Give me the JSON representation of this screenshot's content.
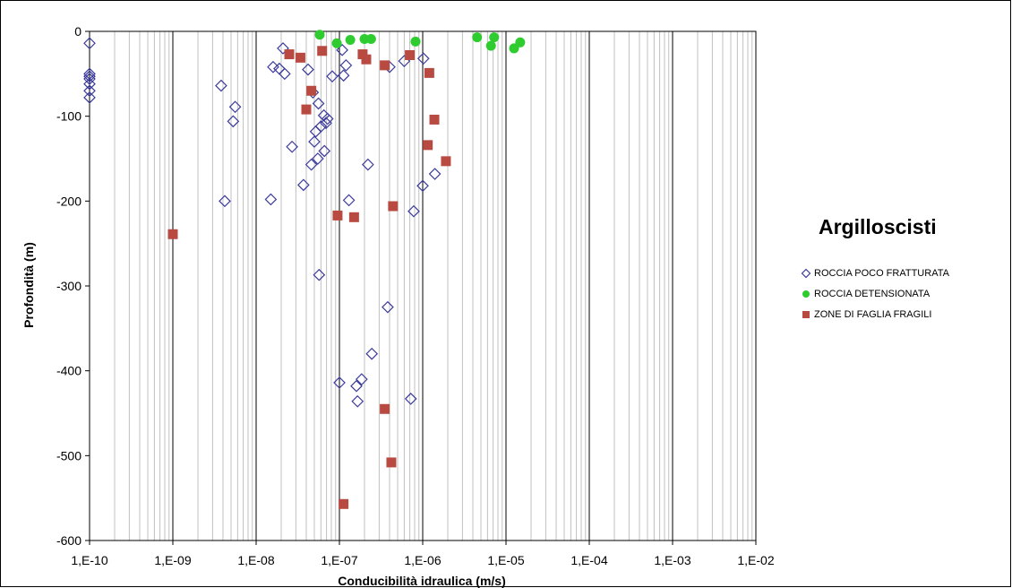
{
  "chart_data": {
    "type": "scatter",
    "title": "Argilloscisti",
    "xlabel": "Conducibilità idraulica (m/s)",
    "ylabel": "Profondità (m)",
    "x_scale": "log",
    "xlim": [
      1e-10,
      0.01
    ],
    "ylim": [
      -600,
      0
    ],
    "grid": "vertical log grid",
    "legend_position": "right",
    "x_tick_labels": [
      "1,E-10",
      "1,E-09",
      "1,E-08",
      "1,E-07",
      "1,E-06",
      "1,E-05",
      "1,E-04",
      "1,E-03",
      "1,E-02"
    ],
    "y_tick_labels": [
      "0",
      "-100",
      "-200",
      "-300",
      "-400",
      "-500",
      "-600"
    ],
    "series": [
      {
        "name": "ROCCIA POCO FRATTURATA",
        "marker": "diamond-open",
        "color": "#3b3b9c",
        "points": [
          [
            1e-10,
            -14
          ],
          [
            1e-10,
            -50
          ],
          [
            1e-10,
            -53
          ],
          [
            1e-10,
            -56
          ],
          [
            1e-10,
            -62
          ],
          [
            1e-10,
            -70
          ],
          [
            1e-10,
            -78
          ],
          [
            3.8e-09,
            -64
          ],
          [
            4.2e-09,
            -200
          ],
          [
            5.3e-09,
            -106
          ],
          [
            5.6e-09,
            -89
          ],
          [
            1.5e-08,
            -198
          ],
          [
            1.6e-08,
            -42
          ],
          [
            1.9e-08,
            -44
          ],
          [
            2.1e-08,
            -20
          ],
          [
            2.2e-08,
            -50
          ],
          [
            2.7e-08,
            -136
          ],
          [
            3.7e-08,
            -181
          ],
          [
            4.2e-08,
            -45
          ],
          [
            4.6e-08,
            -157
          ],
          [
            4.8e-08,
            -72
          ],
          [
            5e-08,
            -130
          ],
          [
            5.2e-08,
            -118
          ],
          [
            5.5e-08,
            -150
          ],
          [
            5.6e-08,
            -85
          ],
          [
            5.7e-08,
            -287
          ],
          [
            6e-08,
            -112
          ],
          [
            6.5e-08,
            -99
          ],
          [
            6.9e-08,
            -108
          ],
          [
            6.6e-08,
            -141
          ],
          [
            7.2e-08,
            -103
          ],
          [
            8.2e-08,
            -53
          ],
          [
            1e-07,
            -414
          ],
          [
            1.08e-07,
            -22
          ],
          [
            1.12e-07,
            -52
          ],
          [
            1.2e-07,
            -40
          ],
          [
            1.3e-07,
            -199
          ],
          [
            1.6e-07,
            -418
          ],
          [
            1.65e-07,
            -436
          ],
          [
            1.85e-07,
            -410
          ],
          [
            2.2e-07,
            -157
          ],
          [
            2.45e-07,
            -380
          ],
          [
            3.8e-07,
            -325
          ],
          [
            4e-07,
            -42
          ],
          [
            6e-07,
            -35
          ],
          [
            7.2e-07,
            -433
          ],
          [
            7.8e-07,
            -212
          ],
          [
            1e-06,
            -182
          ],
          [
            1.02e-06,
            -32
          ],
          [
            1.4e-06,
            -168
          ]
        ]
      },
      {
        "name": "ROCCIA DETENSIONATA",
        "marker": "circle",
        "color": "#2ecc2e",
        "points": [
          [
            5.8e-08,
            -4
          ],
          [
            9.3e-08,
            -14
          ],
          [
            1.35e-07,
            -10
          ],
          [
            2e-07,
            -9
          ],
          [
            2.4e-07,
            -9
          ],
          [
            8.2e-07,
            -12
          ],
          [
            4.5e-06,
            -7
          ],
          [
            6.6e-06,
            -17
          ],
          [
            7.2e-06,
            -7
          ],
          [
            1.25e-05,
            -20
          ],
          [
            1.48e-05,
            -13
          ]
        ]
      },
      {
        "name": "ZONE DI FAGLIA FRAGILI",
        "marker": "square",
        "color": "#b94a42",
        "points": [
          [
            1e-09,
            -239
          ],
          [
            2.5e-08,
            -27
          ],
          [
            3.4e-08,
            -31
          ],
          [
            4e-08,
            -92
          ],
          [
            4.6e-08,
            -70
          ],
          [
            6.2e-08,
            -23
          ],
          [
            9.5e-08,
            -217
          ],
          [
            1.12e-07,
            -557
          ],
          [
            1.5e-07,
            -219
          ],
          [
            1.9e-07,
            -27
          ],
          [
            2.1e-07,
            -33
          ],
          [
            3.5e-07,
            -40
          ],
          [
            3.5e-07,
            -445
          ],
          [
            4.2e-07,
            -508
          ],
          [
            4.4e-07,
            -206
          ],
          [
            7e-07,
            -28
          ],
          [
            1.15e-06,
            -134
          ],
          [
            1.2e-06,
            -49
          ],
          [
            1.38e-06,
            -104
          ],
          [
            1.9e-06,
            -153
          ]
        ]
      }
    ]
  }
}
